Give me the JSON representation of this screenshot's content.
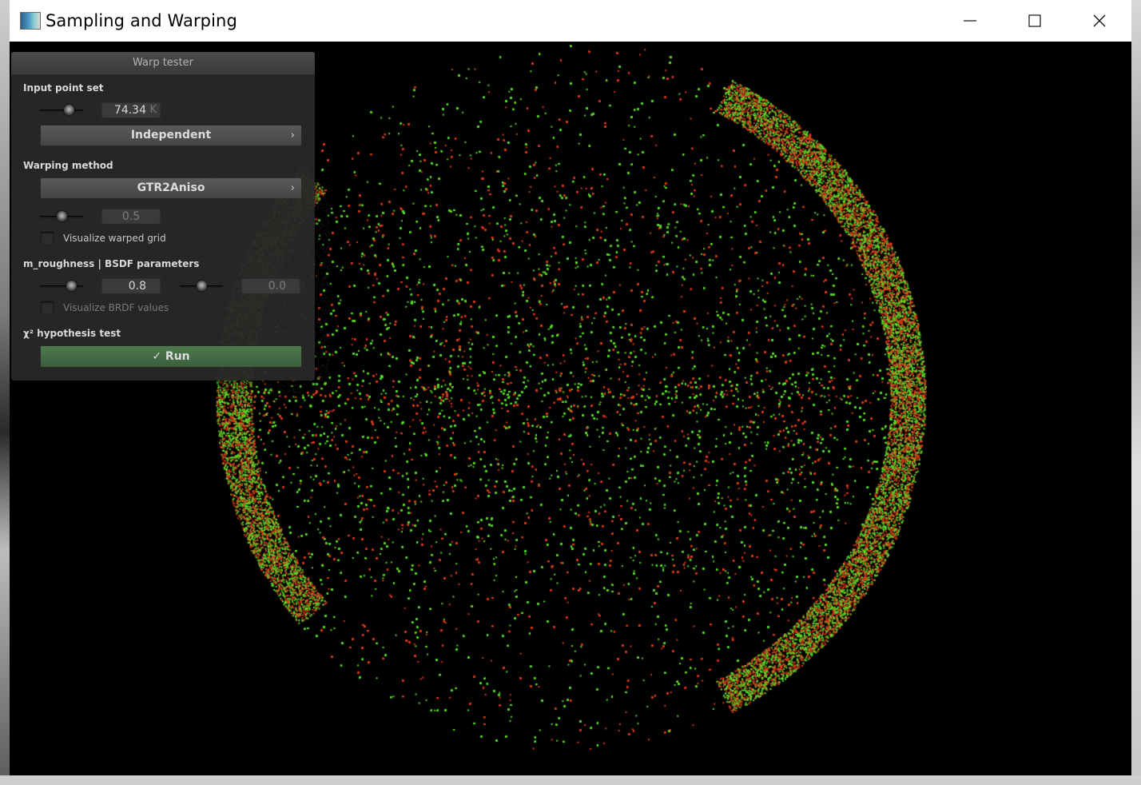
{
  "window": {
    "title": "Sampling and Warping",
    "minimize_icon": "minimize-icon",
    "maximize_icon": "maximize-icon",
    "close_icon": "close-icon"
  },
  "panel": {
    "title": "Warp tester",
    "input_point_set": {
      "label": "Input point set",
      "slider_value": 0.74,
      "count_value": "74.34",
      "count_unit": "K",
      "sampler": "Independent"
    },
    "warping_method": {
      "label": "Warping method",
      "method": "GTR2Aniso",
      "slider_value": 0.5,
      "param_value": "0.5",
      "visualize_grid_label": "Visualize warped grid",
      "visualize_grid_checked": false
    },
    "bsdf_parameters": {
      "label": "m_roughness | BSDF parameters",
      "roughness_slider": 0.8,
      "roughness_value": "0.8",
      "second_slider": 0.5,
      "second_value": "0.0",
      "visualize_brdf_label": "Visualize BRDF values",
      "visualize_brdf_checked": false
    },
    "hypothesis_test": {
      "label": "χ² hypothesis test",
      "run_label": "✓ Run"
    }
  },
  "visualization": {
    "point_colors": [
      "#5ad82a",
      "#d83a1a"
    ],
    "background": "#000000",
    "dark_overlay_color": "#262626"
  }
}
